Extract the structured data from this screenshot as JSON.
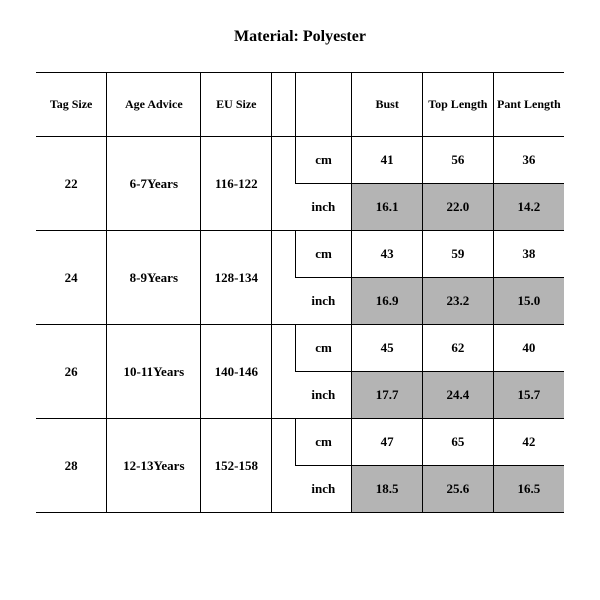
{
  "title": "Material: Polyester",
  "table": {
    "background_color": "#ffffff",
    "border_color": "#000000",
    "shade_color": "#b4b4b4",
    "font": {
      "family": "Times New Roman",
      "weight": "bold",
      "header_size_pt": 12,
      "cell_size_pt": 13
    },
    "columns": [
      "Tag Size",
      "Age Advice",
      "EU Size",
      "",
      "",
      "Bust",
      "Top Length",
      "Pant Length"
    ],
    "rows": [
      {
        "tag": "22",
        "age": "6-7Years",
        "eu": "116-122",
        "cm": {
          "bust": "41",
          "top": "56",
          "pant": "36"
        },
        "inch": {
          "bust": "16.1",
          "top": "22.0",
          "pant": "14.2"
        }
      },
      {
        "tag": "24",
        "age": "8-9Years",
        "eu": "128-134",
        "cm": {
          "bust": "43",
          "top": "59",
          "pant": "38"
        },
        "inch": {
          "bust": "16.9",
          "top": "23.2",
          "pant": "15.0"
        }
      },
      {
        "tag": "26",
        "age": "10-11Years",
        "eu": "140-146",
        "cm": {
          "bust": "45",
          "top": "62",
          "pant": "40"
        },
        "inch": {
          "bust": "17.7",
          "top": "24.4",
          "pant": "15.7"
        }
      },
      {
        "tag": "28",
        "age": "12-13Years",
        "eu": "152-158",
        "cm": {
          "bust": "47",
          "top": "65",
          "pant": "42"
        },
        "inch": {
          "bust": "18.5",
          "top": "25.6",
          "pant": "16.5"
        }
      }
    ],
    "unit_labels": {
      "cm": "cm",
      "inch": "inch"
    }
  }
}
